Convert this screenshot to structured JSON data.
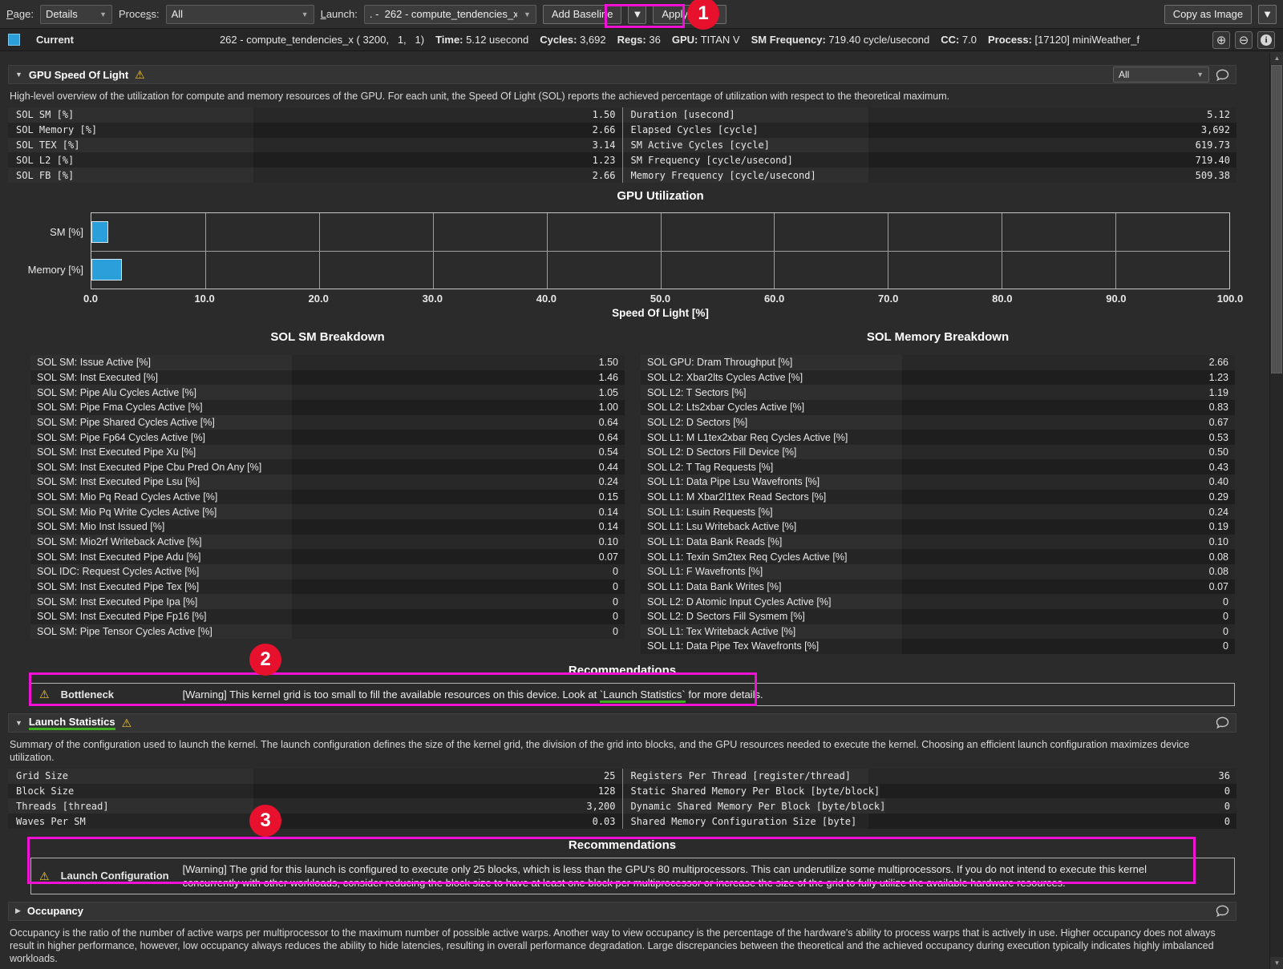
{
  "toolbar": {
    "page_label": "Page:",
    "page_value": "Details",
    "process_label": "Process:",
    "process_value": "All",
    "launch_label": "Launch:",
    "launch_value": ". -  262 - compute_tendencies_x",
    "add_baseline_label": "Add Baseline",
    "apply_rules_label": "Apply Rules",
    "copy_as_image_label": "Copy as Image"
  },
  "summary": {
    "current_label": "Current",
    "kernel": "262 - compute_tendencies_x ( 3200,   1,   1)",
    "fields": [
      {
        "label": "Time:",
        "value": "5.12 usecond"
      },
      {
        "label": "Cycles:",
        "value": "3,692"
      },
      {
        "label": "Regs:",
        "value": "36"
      },
      {
        "label": "GPU:",
        "value": "TITAN V"
      },
      {
        "label": "SM Frequency:",
        "value": "719.40 cycle/usecond"
      },
      {
        "label": "CC:",
        "value": "7.0"
      },
      {
        "label": "Process:",
        "value": "[17120] miniWeather_f"
      }
    ]
  },
  "sol_section": {
    "title": "GPU Speed Of Light",
    "filter_value": "All",
    "description": "High-level overview of the utilization for compute and memory resources of the GPU. For each unit, the Speed Of Light (SOL) reports the achieved percentage of utilization with respect to the theoretical maximum.",
    "rows": [
      {
        "l": "SOL SM [%]",
        "lv": "1.50",
        "r": "Duration [usecond]",
        "rv": "5.12"
      },
      {
        "l": "SOL Memory [%]",
        "lv": "2.66",
        "r": "Elapsed Cycles [cycle]",
        "rv": "3,692"
      },
      {
        "l": "SOL TEX [%]",
        "lv": "3.14",
        "r": "SM Active Cycles [cycle]",
        "rv": "619.73"
      },
      {
        "l": "SOL L2 [%]",
        "lv": "1.23",
        "r": "SM Frequency [cycle/usecond]",
        "rv": "719.40"
      },
      {
        "l": "SOL FB [%]",
        "lv": "2.66",
        "r": "Memory Frequency [cycle/usecond]",
        "rv": "509.38"
      }
    ]
  },
  "chart_data": {
    "type": "bar",
    "orientation": "horizontal",
    "title": "GPU Utilization",
    "categories": [
      "SM [%]",
      "Memory [%]"
    ],
    "values": [
      1.5,
      2.66
    ],
    "xlabel": "Speed Of Light [%]",
    "xlim": [
      0,
      100
    ],
    "xticks": [
      0,
      10,
      20,
      30,
      40,
      50,
      60,
      70,
      80,
      90,
      100
    ],
    "grid": true,
    "legend": false,
    "bar_color": "#2b9fd9"
  },
  "sm_breakdown": {
    "title": "SOL SM Breakdown",
    "rows": [
      {
        "label": "SOL SM: Issue Active [%]",
        "value": "1.50"
      },
      {
        "label": "SOL SM: Inst Executed [%]",
        "value": "1.46"
      },
      {
        "label": "SOL SM: Pipe Alu Cycles Active [%]",
        "value": "1.05"
      },
      {
        "label": "SOL SM: Pipe Fma Cycles Active [%]",
        "value": "1.00"
      },
      {
        "label": "SOL SM: Pipe Shared Cycles Active [%]",
        "value": "0.64"
      },
      {
        "label": "SOL SM: Pipe Fp64 Cycles Active [%]",
        "value": "0.64"
      },
      {
        "label": "SOL SM: Inst Executed Pipe Xu [%]",
        "value": "0.54"
      },
      {
        "label": "SOL SM: Inst Executed Pipe Cbu Pred On Any [%]",
        "value": "0.44"
      },
      {
        "label": "SOL SM: Inst Executed Pipe Lsu [%]",
        "value": "0.24"
      },
      {
        "label": "SOL SM: Mio Pq Read Cycles Active [%]",
        "value": "0.15"
      },
      {
        "label": "SOL SM: Mio Pq Write Cycles Active [%]",
        "value": "0.14"
      },
      {
        "label": "SOL SM: Mio Inst Issued [%]",
        "value": "0.14"
      },
      {
        "label": "SOL SM: Mio2rf Writeback Active [%]",
        "value": "0.10"
      },
      {
        "label": "SOL SM: Inst Executed Pipe Adu [%]",
        "value": "0.07"
      },
      {
        "label": "SOL IDC: Request Cycles Active [%]",
        "value": "0"
      },
      {
        "label": "SOL SM: Inst Executed Pipe Tex [%]",
        "value": "0"
      },
      {
        "label": "SOL SM: Inst Executed Pipe Ipa [%]",
        "value": "0"
      },
      {
        "label": "SOL SM: Inst Executed Pipe Fp16 [%]",
        "value": "0"
      },
      {
        "label": "SOL SM: Pipe Tensor Cycles Active [%]",
        "value": "0"
      }
    ]
  },
  "memory_breakdown": {
    "title": "SOL Memory Breakdown",
    "rows": [
      {
        "label": "SOL GPU: Dram Throughput [%]",
        "value": "2.66"
      },
      {
        "label": "SOL L2: Xbar2lts Cycles Active [%]",
        "value": "1.23"
      },
      {
        "label": "SOL L2: T Sectors [%]",
        "value": "1.19"
      },
      {
        "label": "SOL L2: Lts2xbar Cycles Active [%]",
        "value": "0.83"
      },
      {
        "label": "SOL L2: D Sectors [%]",
        "value": "0.67"
      },
      {
        "label": "SOL L1: M L1tex2xbar Req Cycles Active [%]",
        "value": "0.53"
      },
      {
        "label": "SOL L2: D Sectors Fill Device [%]",
        "value": "0.50"
      },
      {
        "label": "SOL L2: T Tag Requests [%]",
        "value": "0.43"
      },
      {
        "label": "SOL L1: Data Pipe Lsu Wavefronts [%]",
        "value": "0.40"
      },
      {
        "label": "SOL L1: M Xbar2l1tex Read Sectors [%]",
        "value": "0.29"
      },
      {
        "label": "SOL L1: Lsuin Requests [%]",
        "value": "0.24"
      },
      {
        "label": "SOL L1: Lsu Writeback Active [%]",
        "value": "0.19"
      },
      {
        "label": "SOL L1: Data Bank Reads [%]",
        "value": "0.10"
      },
      {
        "label": "SOL L1: Texin Sm2tex Req Cycles Active [%]",
        "value": "0.08"
      },
      {
        "label": "SOL L1: F Wavefronts [%]",
        "value": "0.08"
      },
      {
        "label": "SOL L1: Data Bank Writes [%]",
        "value": "0.07"
      },
      {
        "label": "SOL L2: D Atomic Input Cycles Active [%]",
        "value": "0"
      },
      {
        "label": "SOL L2: D Sectors Fill Sysmem [%]",
        "value": "0"
      },
      {
        "label": "SOL L1: Tex Writeback Active [%]",
        "value": "0"
      },
      {
        "label": "SOL L1: Data Pipe Tex Wavefronts [%]",
        "value": "0"
      }
    ]
  },
  "recommendations_sol": {
    "heading": "Recommendations",
    "name": "Bottleneck",
    "text_before": "[Warning] This kernel grid is too small to fill the available resources on this device. Look at ",
    "link_text": "`Launch Statistics`",
    "text_after": " for more details."
  },
  "launch_section": {
    "title": "Launch Statistics",
    "description": "Summary of the configuration used to launch the kernel. The launch configuration defines the size of the kernel grid, the division of the grid into blocks, and the GPU resources needed to execute the kernel. Choosing an efficient launch configuration maximizes device utilization.",
    "rows": [
      {
        "l": "Grid Size",
        "lv": "25",
        "r": "Registers Per Thread [register/thread]",
        "rv": "36"
      },
      {
        "l": "Block Size",
        "lv": "128",
        "r": "Static Shared Memory Per Block [byte/block]",
        "rv": "0"
      },
      {
        "l": "Threads [thread]",
        "lv": "3,200",
        "r": "Dynamic Shared Memory Per Block [byte/block]",
        "rv": "0"
      },
      {
        "l": "Waves Per SM",
        "lv": "0.03",
        "r": "Shared Memory Configuration Size [byte]",
        "rv": "0"
      }
    ]
  },
  "recommendations_launch": {
    "heading": "Recommendations",
    "name": "Launch Configuration",
    "text": "[Warning] The grid for this launch is configured to execute only 25 blocks, which is less than the GPU's 80 multiprocessors. This can underutilize some multiprocessors. If you do not intend to execute this kernel concurrently with other workloads, consider reducing the block size to have at least one block per multiprocessor or increase the size of the grid to fully utilize the available hardware resources."
  },
  "occupancy_section": {
    "title": "Occupancy",
    "description": "Occupancy is the ratio of the number of active warps per multiprocessor to the maximum number of possible active warps. Another way to view occupancy is the percentage of the hardware's ability to process warps that is actively in use. Higher occupancy does not always result in higher performance, however, low occupancy always reduces the ability to hide latencies, resulting in overall performance degradation. Large discrepancies between the theoretical and the achieved occupancy during execution typically indicates highly imbalanced workloads."
  },
  "annotations": {
    "badges": [
      "1",
      "2",
      "3"
    ],
    "magenta": "#f011d4",
    "red": "#e8112d",
    "link_green": "#3fae21",
    "accent_blue": "#2b9fd9",
    "warning_yellow": "#f2c52b"
  }
}
